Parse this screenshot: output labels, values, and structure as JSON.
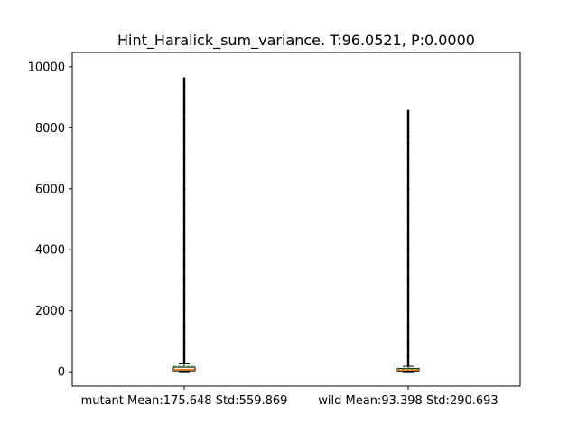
{
  "chart_data": {
    "type": "box",
    "title": "Hint_Haralick_sum_variance. T:96.0521, P:0.0000",
    "xlabel": "",
    "ylabel": "",
    "categories": [
      "mutant Mean:175.648 Std:559.869",
      "wild Mean:93.398 Std:290.693"
    ],
    "ylim": [
      -470,
      10470
    ],
    "yticks": [
      0,
      2000,
      4000,
      6000,
      8000,
      10000
    ],
    "grid": false,
    "boxes": [
      {
        "category": "mutant Mean:175.648 Std:559.869",
        "whisker_low": 0,
        "q1": 30,
        "median": 75,
        "q3": 150,
        "whisker_high": 260,
        "mean": 175.648,
        "outliers": [
          300,
          600,
          1000,
          1500,
          2000,
          2500,
          3000,
          3500,
          4000,
          4500,
          5000,
          5500,
          6000,
          6500,
          7000,
          7500,
          8000,
          8300,
          8500,
          8650,
          8750,
          8850,
          8950,
          9300,
          9380,
          9620
        ]
      },
      {
        "category": "wild Mean:93.398 Std:290.693",
        "whisker_low": 0,
        "q1": 25,
        "median": 55,
        "q3": 110,
        "whisker_high": 180,
        "mean": 93.398,
        "outliers": [
          220,
          500,
          1000,
          1500,
          2000,
          2500,
          3000,
          3500,
          4000,
          4500,
          5000,
          5500,
          6000,
          6500,
          7000,
          7500,
          7650,
          7750,
          7850,
          7950,
          8050,
          8150,
          8300,
          8400,
          8550
        ]
      }
    ],
    "colors": {
      "median": "#ff7f0e",
      "mean": "#2ca02c",
      "outlier": "#000000",
      "box": "#000000"
    }
  }
}
